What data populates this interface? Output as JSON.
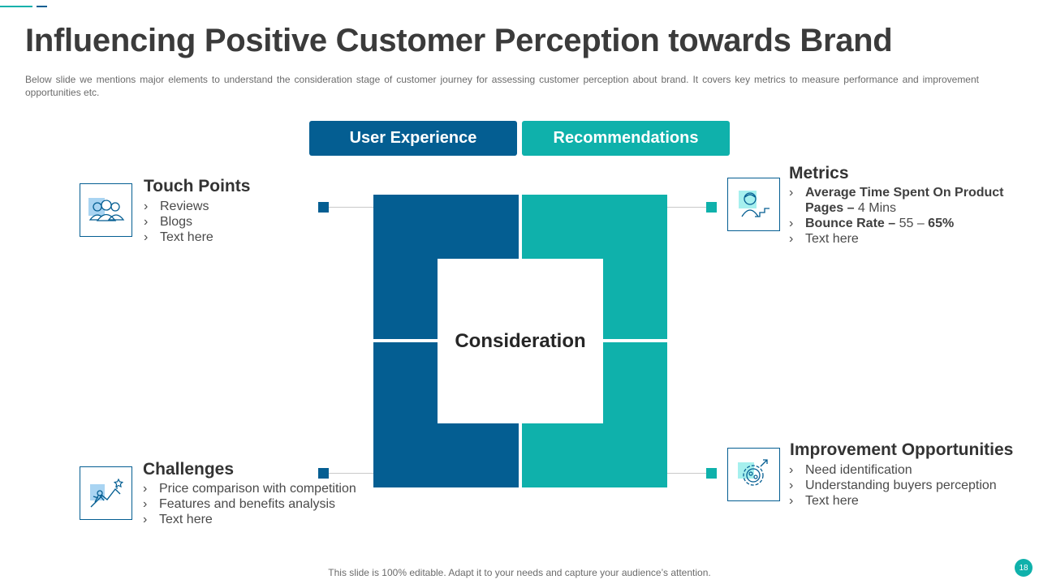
{
  "slide": {
    "title": "Influencing Positive Customer Perception towards Brand",
    "subtitle": "Below slide we mentions major elements to understand the consideration stage of customer journey for assessing customer perception about brand. It covers key metrics to measure performance and improvement opportunities etc.",
    "footer": "This slide is 100% editable. Adapt it to your needs and capture your audience’s attention.",
    "page_number": "18"
  },
  "tabs": {
    "user_experience": "User Experience",
    "recommendations": "Recommendations"
  },
  "center_label": "Consideration",
  "sections": {
    "touch_points": {
      "title": "Touch Points",
      "items": [
        "Reviews",
        "Blogs",
        "Text here"
      ]
    },
    "challenges": {
      "title": "Challenges",
      "items": [
        "Price comparison with competition",
        "Features and benefits analysis",
        "Text here"
      ]
    },
    "metrics": {
      "title": "Metrics",
      "item1_bold": "Average Time Spent On Product Pages –",
      "item1_value": " 4 Mins",
      "item2_bold": "Bounce Rate –",
      "item2_value": " 55 – ",
      "item2_value_bold": "65%",
      "item3": "Text here"
    },
    "improvement": {
      "title": "Improvement Opportunities",
      "items": [
        "Need identification",
        "Understanding buyers perception",
        "Text here"
      ]
    }
  },
  "icons": {
    "touch_points": "users-icon",
    "challenges": "climbing-goal-icon",
    "metrics": "person-stairs-icon",
    "improvement": "gear-process-icon"
  },
  "colors": {
    "dark_blue": "#045e92",
    "teal": "#0fb1ab",
    "light_blue": "#a9d4f2",
    "light_teal": "#a6f0ee"
  }
}
